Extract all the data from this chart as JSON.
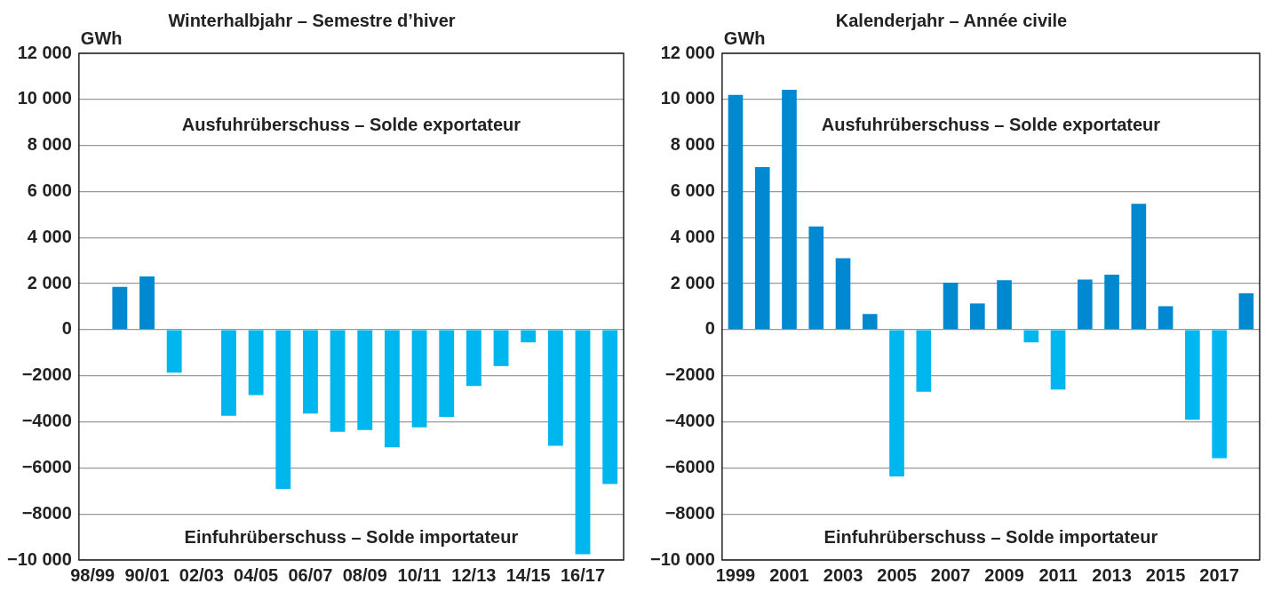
{
  "chart_data": [
    {
      "type": "bar",
      "title": "Winterhalbjahr – Semestre d’hiver",
      "ylabel": "GWh",
      "categories": [
        "98/99",
        null,
        "90/01",
        null,
        "02/03",
        null,
        "04/05",
        null,
        "06/07",
        null,
        "08/09",
        null,
        "10/11",
        null,
        "12/13",
        null,
        "14/15",
        null,
        "16/17",
        null
      ],
      "values": [
        null,
        1860,
        2310,
        -1870,
        null,
        -3740,
        -2840,
        -6910,
        -3640,
        -4430,
        -4360,
        -5110,
        -4240,
        -3790,
        -2440,
        -1580,
        -550,
        -5040,
        -9750,
        -6700
      ],
      "colors": [
        "#0088d1",
        "#0088d1",
        "#0088d1",
        "#00b6ef",
        "#00b6ef",
        "#00b6ef",
        "#00b6ef",
        "#00b6ef",
        "#00b6ef",
        "#00b6ef",
        "#00b6ef",
        "#00b6ef",
        "#00b6ef",
        "#00b6ef",
        "#00b6ef",
        "#00b6ef",
        "#00b6ef",
        "#00b6ef",
        "#00b6ef",
        "#00b6ef"
      ],
      "ylim": [
        -10000,
        12000
      ],
      "yticks": [
        {
          "value": 12000,
          "label": "12 000"
        },
        {
          "value": 10000,
          "label": "10 000"
        },
        {
          "value": 8000,
          "label": "8 000"
        },
        {
          "value": 6000,
          "label": "6 000"
        },
        {
          "value": 4000,
          "label": "4 000"
        },
        {
          "value": 2000,
          "label": "2 000"
        },
        0,
        {
          "value": -2000,
          "label": "−2000"
        },
        {
          "value": -4000,
          "label": "−4000"
        },
        {
          "value": -6000,
          "label": "−6000"
        },
        {
          "value": -8000,
          "label": "−8000"
        },
        {
          "value": -10000,
          "label": "−10 000"
        }
      ],
      "grid": "y",
      "legend": false,
      "annotations": [
        "Ausfuhrüberschuss – Solde exportateur",
        "Einfuhrüberschuss – Solde importateur"
      ]
    },
    {
      "type": "bar",
      "title": "Kalenderjahr – Année civile",
      "ylabel": "GWh",
      "categories": [
        "1999",
        null,
        "2001",
        null,
        "2003",
        null,
        "2005",
        null,
        "2007",
        null,
        "2009",
        null,
        "2011",
        null,
        "2013",
        null,
        "2015",
        null,
        "2017",
        null
      ],
      "values": [
        10200,
        7060,
        10420,
        4480,
        3100,
        680,
        -6370,
        -2700,
        2040,
        1140,
        2150,
        -550,
        -2600,
        2180,
        2390,
        5470,
        1020,
        -3910,
        -5580,
        1580
      ],
      "colors": [
        "#0088d1",
        "#0088d1",
        "#0088d1",
        "#0088d1",
        "#0088d1",
        "#0088d1",
        "#00b6ef",
        "#00b6ef",
        "#0088d1",
        "#0088d1",
        "#0088d1",
        "#00b6ef",
        "#00b6ef",
        "#0088d1",
        "#0088d1",
        "#0088d1",
        "#0088d1",
        "#00b6ef",
        "#00b6ef",
        "#0088d1"
      ],
      "ylim": [
        -10000,
        12000
      ],
      "yticks": [
        {
          "value": 12000,
          "label": "12 000"
        },
        {
          "value": 10000,
          "label": "10 000"
        },
        {
          "value": 8000,
          "label": "8 000"
        },
        {
          "value": 6000,
          "label": "6 000"
        },
        {
          "value": 4000,
          "label": "4 000"
        },
        {
          "value": 2000,
          "label": "2 000"
        },
        0,
        {
          "value": -2000,
          "label": "−2000"
        },
        {
          "value": -4000,
          "label": "−4000"
        },
        {
          "value": -6000,
          "label": "−6000"
        },
        {
          "value": -8000,
          "label": "−8000"
        },
        {
          "value": -10000,
          "label": "−10 000"
        }
      ],
      "grid": "y",
      "legend": false,
      "annotations": [
        "Ausfuhrüberschuss – Solde exportateur",
        "Einfuhrüberschuss – Solde importateur"
      ]
    }
  ]
}
